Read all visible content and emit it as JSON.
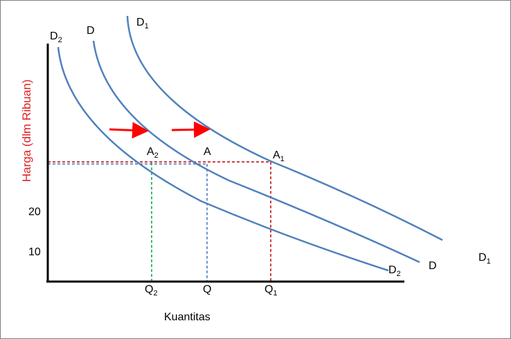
{
  "diagram": {
    "y_axis_label": "Harga (dlm Ribuan)",
    "x_axis_label": "Kuantitas",
    "y_ticks": [
      {
        "label": "20"
      },
      {
        "label": "10"
      }
    ],
    "curves": [
      {
        "id": "d2",
        "name": "D",
        "subscript": "2",
        "color": "#4f81bd"
      },
      {
        "id": "d",
        "name": "D",
        "subscript": "",
        "color": "#4f81bd"
      },
      {
        "id": "d1",
        "name": "D",
        "subscript": "1",
        "color": "#4f81bd"
      }
    ],
    "points": [
      {
        "id": "a2",
        "name": "A",
        "subscript": "2"
      },
      {
        "id": "a",
        "name": "A",
        "subscript": ""
      },
      {
        "id": "a1",
        "name": "A",
        "subscript": "1"
      }
    ],
    "quantities": [
      {
        "id": "q2",
        "name": "Q",
        "subscript": "2",
        "color": "#00a04a"
      },
      {
        "id": "q",
        "name": "Q",
        "subscript": "",
        "color": "#4472c4"
      },
      {
        "id": "q1",
        "name": "Q",
        "subscript": "1",
        "color": "#c00000"
      }
    ],
    "shift_arrows_color": "#ff0000",
    "price_line_colors": [
      "#4472c4",
      "#c00000"
    ]
  }
}
